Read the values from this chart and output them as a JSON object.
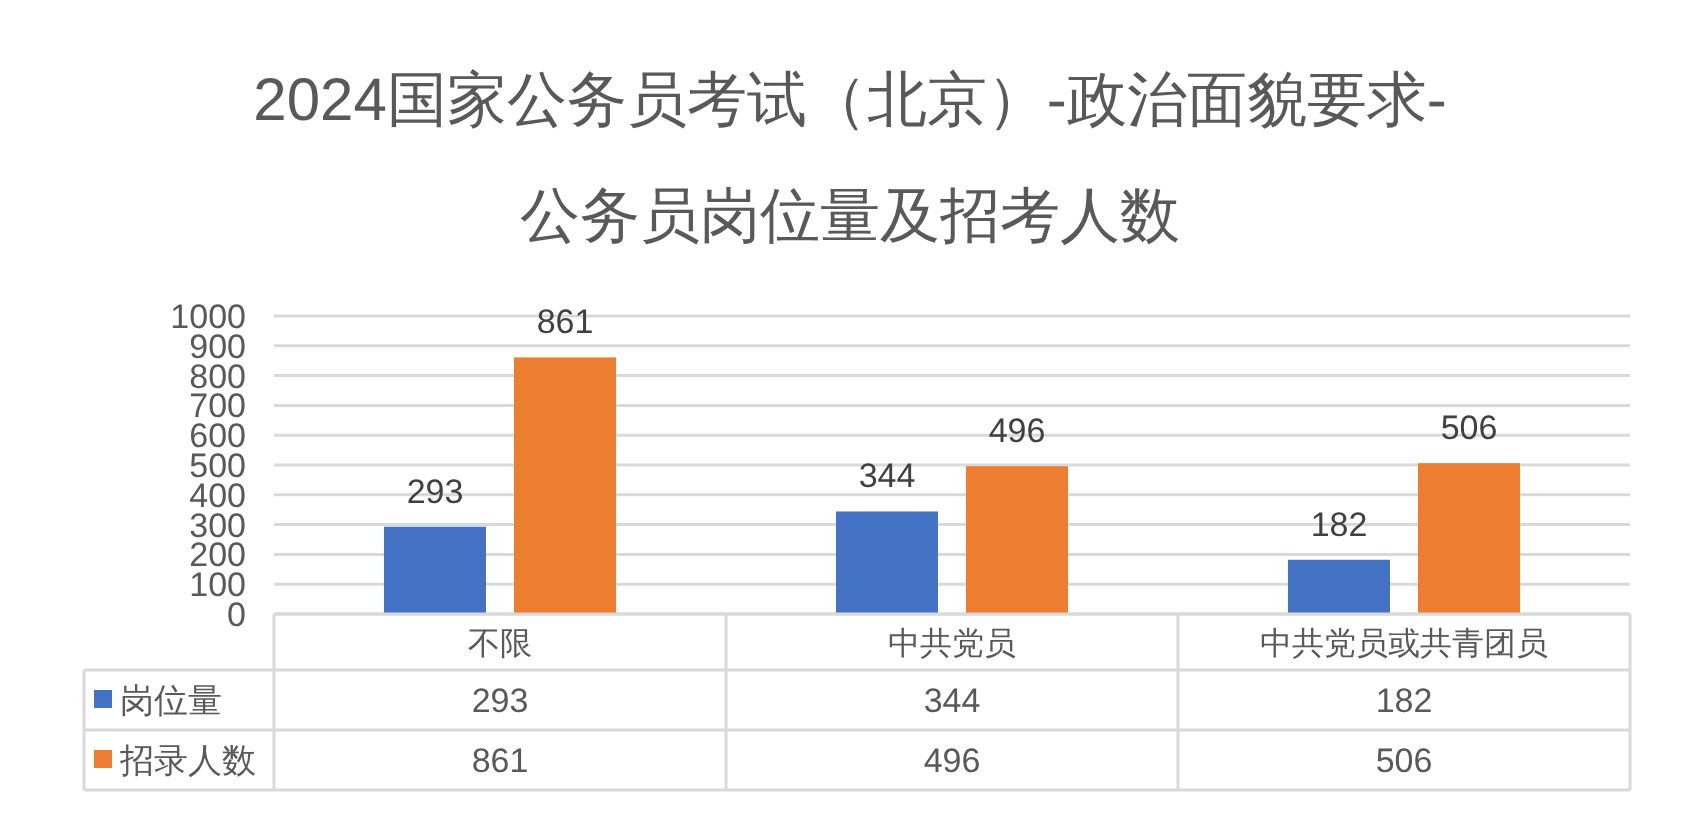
{
  "chart_data": {
    "type": "bar",
    "title": "2024国家公务员考试（北京）-政治面貌要求-公务员岗位量及招考人数",
    "categories": [
      "不限",
      "中共党员",
      "中共党员或共青团员"
    ],
    "series": [
      {
        "name": "岗位量",
        "color": "#4472c4",
        "values": [
          293,
          344,
          182
        ]
      },
      {
        "name": "招录人数",
        "color": "#ed7d31",
        "values": [
          861,
          496,
          506
        ]
      }
    ],
    "ylim": [
      0,
      1000
    ],
    "yticks": [
      0,
      100,
      200,
      300,
      400,
      500,
      600,
      700,
      800,
      900,
      1000
    ],
    "grid": "y",
    "data_labels": true,
    "legend": "bottom",
    "annotations": [
      "293",
      "344",
      "182",
      "861",
      "496",
      "506"
    ]
  }
}
